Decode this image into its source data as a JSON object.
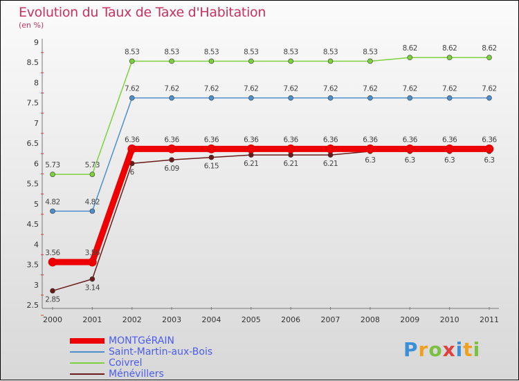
{
  "chart_data": {
    "type": "line",
    "title": "Evolution du Taux de Taxe d'Habitation",
    "subtitle": "(en %)",
    "x": [
      "2000",
      "2001",
      "2002",
      "2003",
      "2004",
      "2005",
      "2006",
      "2007",
      "2008",
      "2009",
      "2010",
      "2011"
    ],
    "yticks": [
      "2.5",
      "3",
      "3.5",
      "4",
      "4.5",
      "5",
      "5.5",
      "6",
      "6.5",
      "7",
      "7.5",
      "8",
      "8.5",
      "9"
    ],
    "ylim": [
      2.5,
      9
    ],
    "grid": false,
    "legend_position": "bottom-left",
    "series": [
      {
        "name": "Coivrel",
        "color": "#7dd13c",
        "values": [
          5.73,
          5.73,
          8.53,
          8.53,
          8.53,
          8.53,
          8.53,
          8.53,
          8.53,
          8.62,
          8.62,
          8.62
        ],
        "labels": [
          "5.73",
          "5.73",
          "8.53",
          "8.53",
          "8.53",
          "8.53",
          "8.53",
          "8.53",
          "8.53",
          "8.62",
          "8.62",
          "8.62"
        ]
      },
      {
        "name": "Saint-Martin-aux-Bois",
        "color": "#4d8fcc",
        "values": [
          4.82,
          4.82,
          7.62,
          7.62,
          7.62,
          7.62,
          7.62,
          7.62,
          7.62,
          7.62,
          7.62,
          7.62
        ],
        "labels": [
          "4.82",
          "4.82",
          "7.62",
          "7.62",
          "7.62",
          "7.62",
          "7.62",
          "7.62",
          "7.62",
          "7.62",
          "7.62",
          "7.62"
        ]
      },
      {
        "name": "Ménévillers",
        "color": "#6b1a1a",
        "values": [
          2.85,
          3.14,
          6,
          6.09,
          6.15,
          6.21,
          6.21,
          6.21,
          6.3,
          6.3,
          6.3,
          6.3
        ],
        "labels": [
          "2.85",
          "3.14",
          "6",
          "6.09",
          "6.15",
          "6.21",
          "6.21",
          "6.21",
          "6.3",
          "6.3",
          "6.3",
          "6.3"
        ]
      },
      {
        "name": "MONTGéRAIN",
        "color": "#ee0000",
        "values": [
          3.56,
          3.56,
          6.36,
          6.36,
          6.36,
          6.36,
          6.36,
          6.36,
          6.36,
          6.36,
          6.36,
          6.36
        ],
        "labels": [
          "3.56",
          "3.56",
          "6.36",
          "6.36",
          "6.36",
          "6.36",
          "6.36",
          "6.36",
          "6.36",
          "6.36",
          "6.36",
          "6.36"
        ]
      }
    ],
    "legend": [
      "MONTGéRAIN",
      "Saint-Martin-aux-Bois",
      "Coivrel",
      "Ménévillers"
    ]
  },
  "logo": "Proxiti"
}
